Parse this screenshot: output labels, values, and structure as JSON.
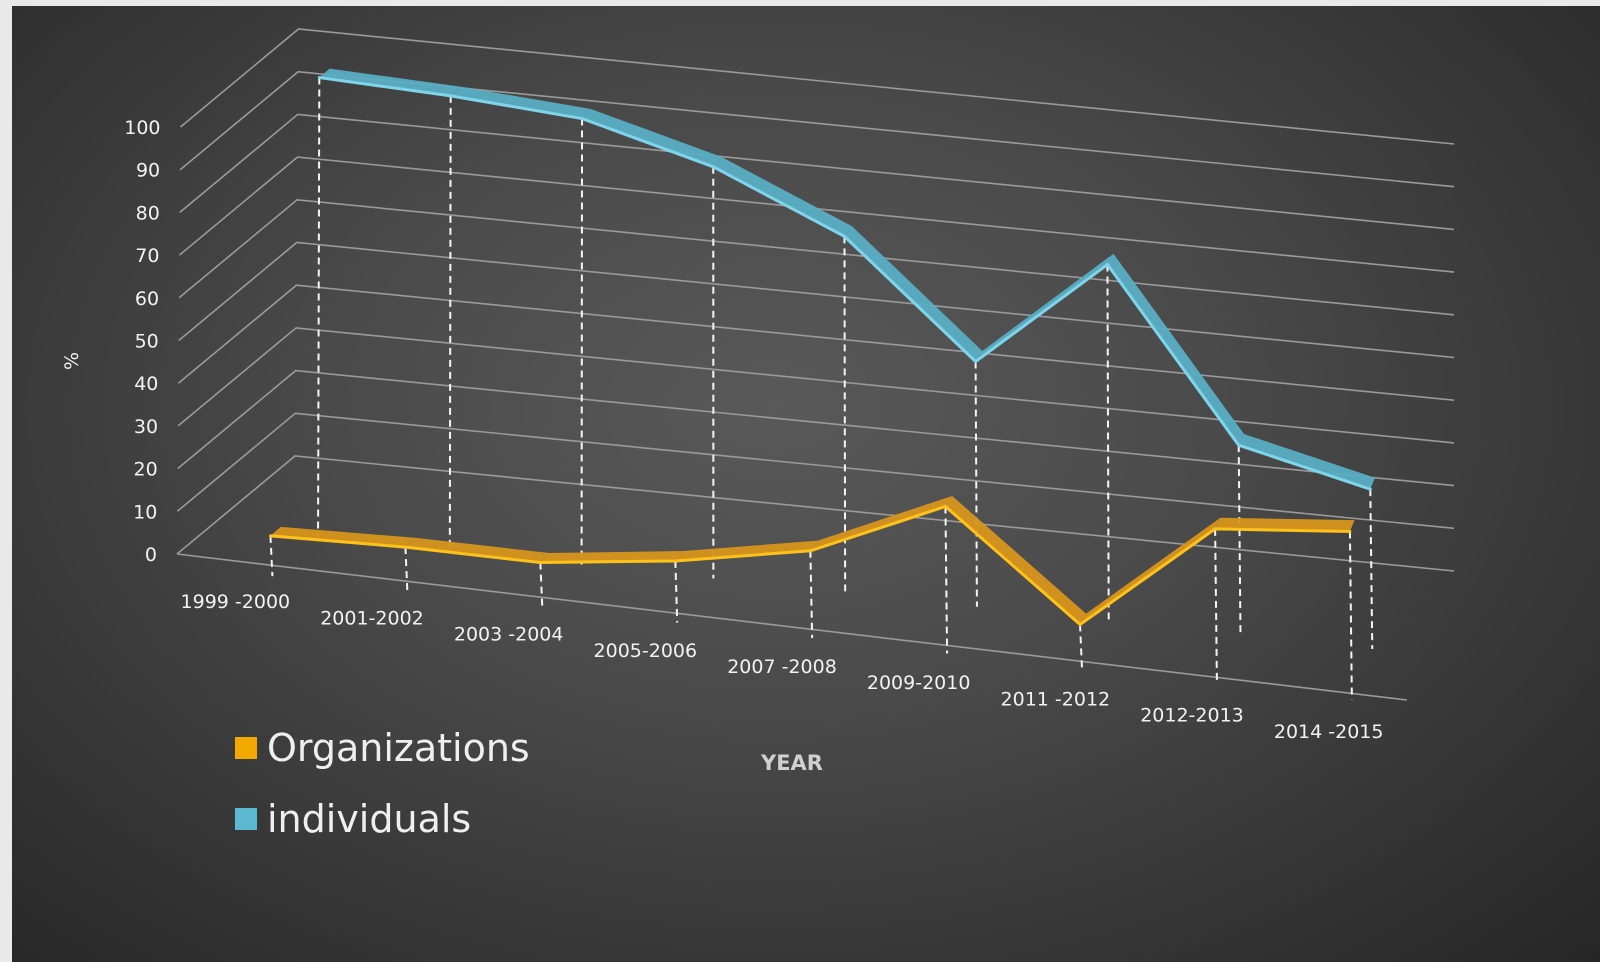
{
  "chart_data": {
    "type": "line",
    "style": "3d-line",
    "categories": [
      "1999 -2000",
      "2001-2002",
      "2003 -2004",
      "2005-2006",
      "2007 -2008",
      "2009-2010",
      "2011 -2012",
      "2012-2013",
      "2014 -2015"
    ],
    "series": [
      {
        "name": "Organizations",
        "values": [
          1,
          2,
          2,
          6,
          12,
          26,
          2,
          28,
          31
        ],
        "color": "#f2a900"
      },
      {
        "name": "individuals",
        "values": [
          99,
          98,
          96,
          88,
          75,
          49,
          75,
          36,
          29
        ],
        "color": "#5db8d1"
      }
    ],
    "xlabel": "YEAR",
    "ylabel": "%",
    "ylim": [
      0,
      100
    ],
    "yticks": [
      "0",
      "10",
      "20",
      "30",
      "40",
      "50",
      "60",
      "70",
      "80",
      "90",
      "100"
    ],
    "grid": true,
    "legend_position": "bottom-left",
    "background": "#474747"
  }
}
